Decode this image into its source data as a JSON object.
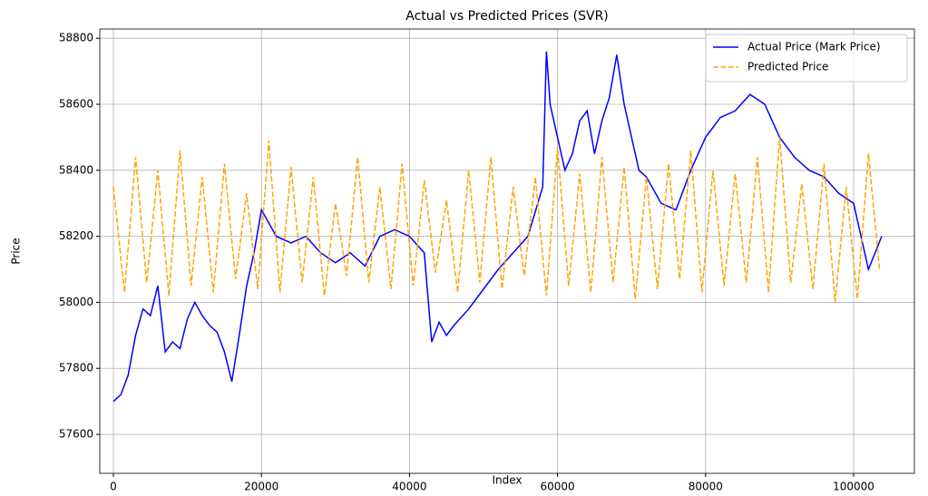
{
  "chart_data": {
    "type": "line",
    "title": "Actual vs Predicted Prices (SVR)",
    "x_label": "Index",
    "y_label": "Price",
    "xlim": [
      -1838,
      108210
    ],
    "ylim": [
      57482,
      58828
    ],
    "xticks": [
      0,
      20000,
      40000,
      60000,
      80000,
      100000
    ],
    "yticks": [
      57600,
      57800,
      58000,
      58200,
      58400,
      58600,
      58800
    ],
    "grid": true,
    "legend": "upper right",
    "series": [
      {
        "name": "Actual Price (Mark Price)",
        "color": "#0000ff",
        "linestyle": "solid",
        "x": [
          0,
          1000,
          2000,
          3000,
          4000,
          5000,
          6000,
          7000,
          8000,
          9000,
          10000,
          11000,
          12000,
          13000,
          14000,
          15000,
          16000,
          17000,
          18000,
          19000,
          20000,
          22000,
          24000,
          26000,
          28000,
          30000,
          32000,
          34000,
          36000,
          38000,
          40000,
          42000,
          43000,
          44000,
          45000,
          46000,
          48000,
          50000,
          52000,
          54000,
          56000,
          58000,
          58500,
          59000,
          60000,
          61000,
          62000,
          63000,
          64000,
          65000,
          66000,
          67000,
          68000,
          69000,
          70000,
          71000,
          72000,
          74000,
          76000,
          78000,
          80000,
          82000,
          84000,
          86000,
          88000,
          90000,
          92000,
          94000,
          96000,
          98000,
          100000,
          102000,
          103800
        ],
        "values": [
          57700,
          57720,
          57780,
          57900,
          57980,
          57960,
          58050,
          57850,
          57880,
          57860,
          57950,
          58000,
          57960,
          57930,
          57910,
          57850,
          57760,
          57900,
          58050,
          58150,
          58280,
          58200,
          58180,
          58200,
          58150,
          58120,
          58150,
          58110,
          58200,
          58220,
          58200,
          58150,
          57880,
          57940,
          57900,
          57930,
          57980,
          58040,
          58100,
          58150,
          58200,
          58350,
          58760,
          58600,
          58500,
          58400,
          58450,
          58550,
          58580,
          58450,
          58550,
          58620,
          58750,
          58600,
          58500,
          58400,
          58380,
          58300,
          58280,
          58400,
          58500,
          58560,
          58580,
          58630,
          58600,
          58500,
          58440,
          58400,
          58380,
          58330,
          58300,
          58100,
          58200
        ]
      },
      {
        "name": "Predicted Price",
        "color": "#ffa500",
        "linestyle": "dashed",
        "x": [
          0,
          1500,
          3000,
          4500,
          6000,
          7500,
          9000,
          10500,
          12000,
          13500,
          15000,
          16500,
          18000,
          19500,
          21000,
          22500,
          24000,
          25500,
          27000,
          28500,
          30000,
          31500,
          33000,
          34500,
          36000,
          37500,
          39000,
          40500,
          42000,
          43500,
          45000,
          46500,
          48000,
          49500,
          51000,
          52500,
          54000,
          55500,
          57000,
          58500,
          60000,
          61500,
          63000,
          64500,
          66000,
          67500,
          69000,
          70500,
          72000,
          73500,
          75000,
          76500,
          78000,
          79500,
          81000,
          82500,
          84000,
          85500,
          87000,
          88500,
          90000,
          91500,
          93000,
          94500,
          96000,
          97500,
          99000,
          100500,
          102000,
          103500
        ],
        "values": [
          58350,
          58030,
          58440,
          58060,
          58400,
          58020,
          58460,
          58050,
          58380,
          58030,
          58420,
          58070,
          58330,
          58040,
          58490,
          58030,
          58410,
          58060,
          58380,
          58020,
          58300,
          58080,
          58440,
          58060,
          58350,
          58040,
          58420,
          58050,
          58370,
          58090,
          58310,
          58030,
          58400,
          58060,
          58440,
          58040,
          58350,
          58080,
          58380,
          58020,
          58470,
          58050,
          58390,
          58030,
          58440,
          58060,
          58410,
          58010,
          58380,
          58040,
          58420,
          58070,
          58460,
          58030,
          58400,
          58050,
          58390,
          58060,
          58440,
          58030,
          58500,
          58060,
          58360,
          58040,
          58420,
          58000,
          58350,
          58010,
          58450,
          58100
        ]
      }
    ]
  }
}
